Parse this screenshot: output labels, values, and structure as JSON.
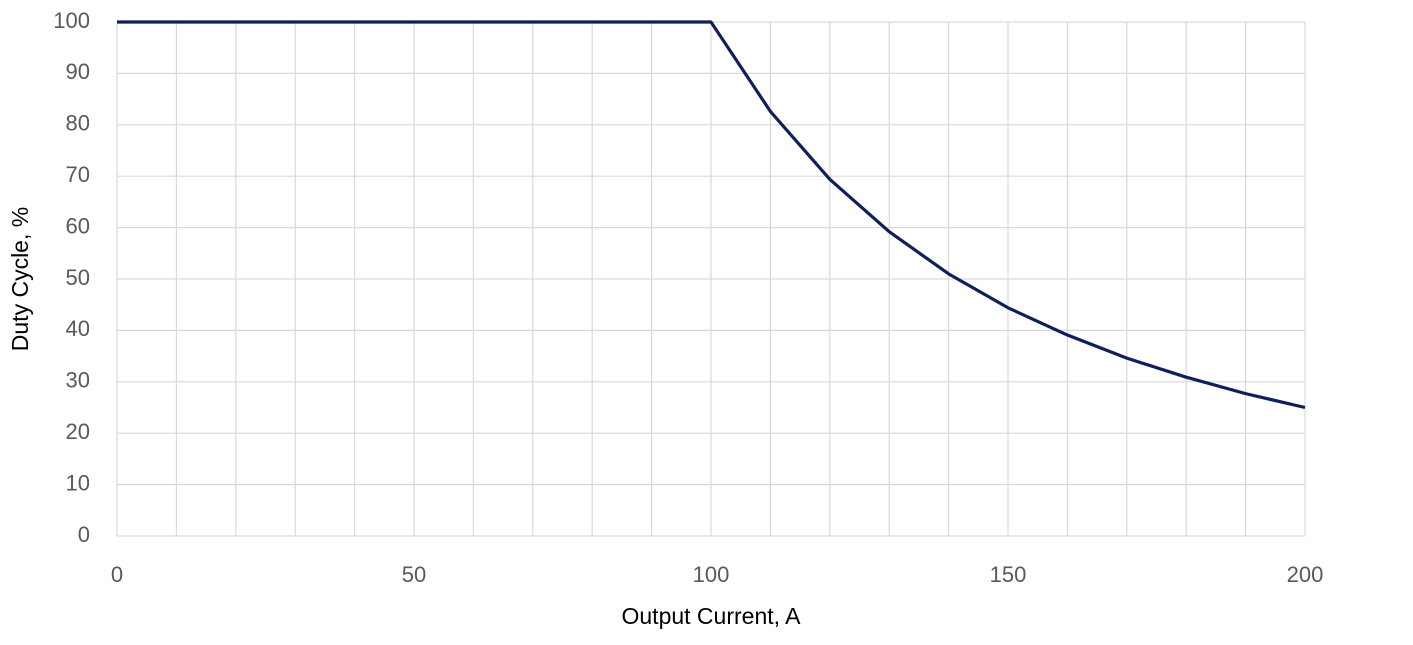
{
  "chart_data": {
    "type": "line",
    "x_label": "Output Current, A",
    "y_label": "Duty Cycle, %",
    "x": [
      0,
      100,
      110,
      120,
      130,
      140,
      150,
      160,
      170,
      180,
      190,
      200
    ],
    "series": [
      {
        "name": "Duty Cycle",
        "color": "#0d1f5c",
        "values": [
          100,
          100,
          82.6,
          69.4,
          59.2,
          51,
          44.4,
          39.1,
          34.6,
          30.9,
          27.7,
          25
        ]
      }
    ],
    "xlim": [
      0,
      200
    ],
    "ylim": [
      0,
      100
    ],
    "xticks": [
      0,
      50,
      100,
      150,
      200
    ],
    "x_minor_gridlines": [
      0,
      10,
      20,
      30,
      40,
      50,
      60,
      70,
      80,
      90,
      100,
      110,
      120,
      130,
      140,
      150,
      160,
      170,
      180,
      190,
      200
    ],
    "yticks": [
      0,
      10,
      20,
      30,
      40,
      50,
      60,
      70,
      80,
      90,
      100
    ],
    "grid": true
  }
}
